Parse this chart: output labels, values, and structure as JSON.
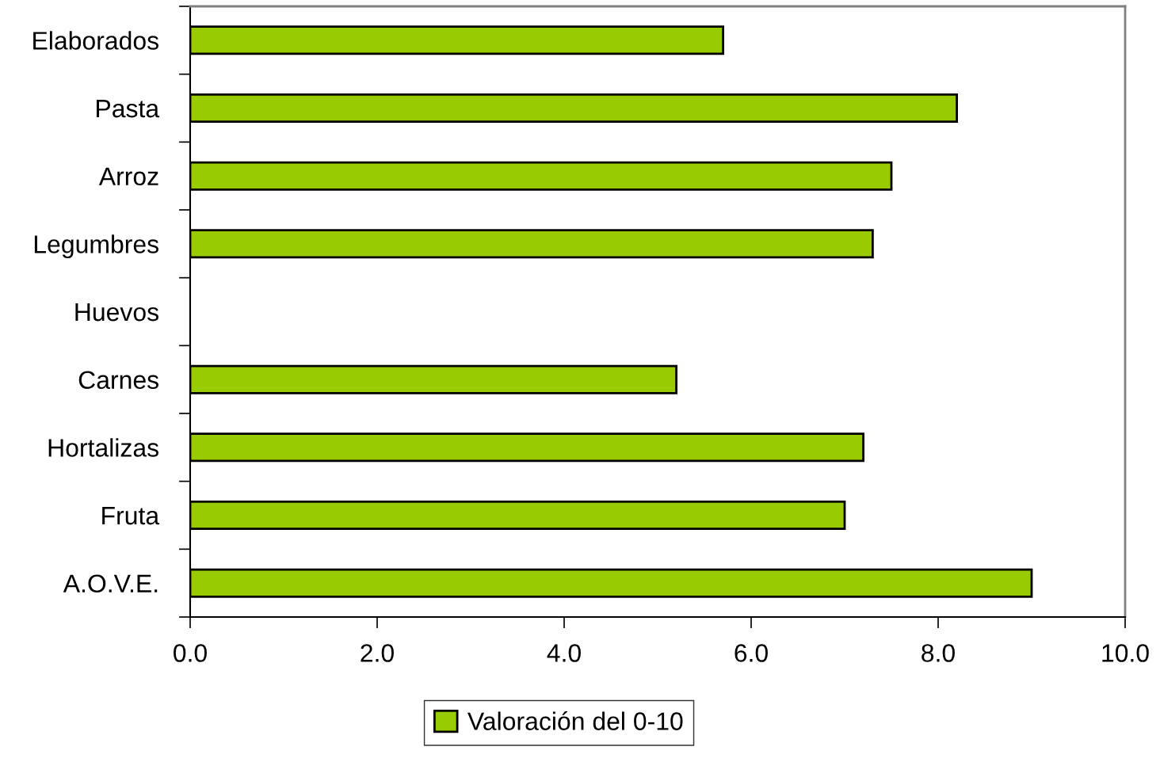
{
  "chart_data": {
    "type": "bar",
    "orientation": "horizontal",
    "categories": [
      "Elaborados",
      "Pasta",
      "Arroz",
      "Legumbres",
      "Huevos",
      "Carnes",
      "Hortalizas",
      "Fruta",
      "A.O.V.E."
    ],
    "series": [
      {
        "name": "Valoración del 0-10",
        "color": "#99cc00",
        "values": [
          5.7,
          8.2,
          7.5,
          7.3,
          null,
          5.2,
          7.2,
          7.0,
          9.0
        ]
      }
    ],
    "xlim": [
      0,
      10
    ],
    "xticks": [
      {
        "value": 0,
        "label": "0.0"
      },
      {
        "value": 2,
        "label": "2.0"
      },
      {
        "value": 4,
        "label": "4.0"
      },
      {
        "value": 6,
        "label": "6.0"
      },
      {
        "value": 8,
        "label": "8.0"
      },
      {
        "value": 10,
        "label": "10.0"
      }
    ],
    "grid": false,
    "legend": "bottom"
  }
}
